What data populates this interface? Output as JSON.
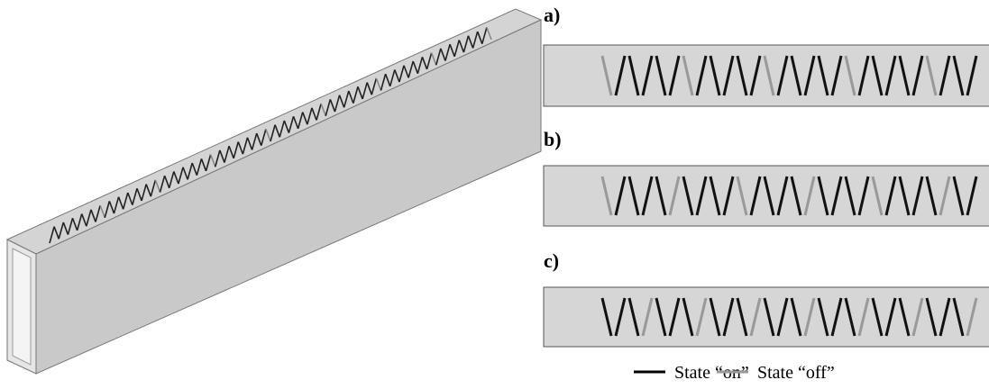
{
  "panels": [
    {
      "label": "a)"
    },
    {
      "label": "b)"
    },
    {
      "label": "c)"
    }
  ],
  "legend": {
    "on": "State “on”",
    "off": "State “off”"
  }
}
